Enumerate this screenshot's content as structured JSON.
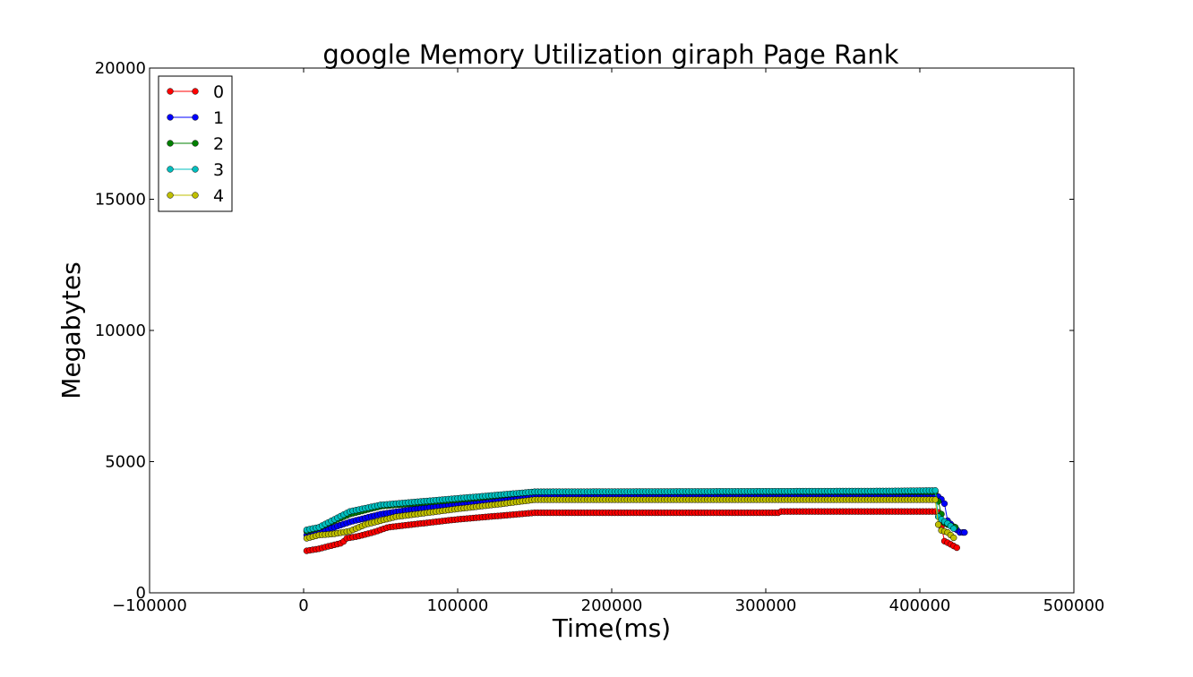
{
  "chart_data": {
    "type": "line",
    "title": "google Memory Utilization giraph Page Rank",
    "xlabel": "Time(ms)",
    "ylabel": "Megabytes",
    "xlim": [
      -100000,
      500000
    ],
    "ylim": [
      0,
      20000
    ],
    "xticks": [
      -100000,
      0,
      100000,
      200000,
      300000,
      400000,
      500000
    ],
    "xtick_labels": [
      "−100000",
      "0",
      "100000",
      "200000",
      "300000",
      "400000",
      "500000"
    ],
    "yticks": [
      0,
      5000,
      10000,
      15000,
      20000
    ],
    "ytick_labels": [
      "0",
      "5000",
      "10000",
      "15000",
      "20000"
    ],
    "grid": false,
    "legend_position": "top-left",
    "sample_interval_ms": 2000,
    "series": [
      {
        "name": "0",
        "color": "#ff0000",
        "keypoints": [
          [
            2000,
            1600
          ],
          [
            10000,
            1680
          ],
          [
            20000,
            1830
          ],
          [
            25000,
            1900
          ],
          [
            28000,
            2080
          ],
          [
            35000,
            2150
          ],
          [
            45000,
            2300
          ],
          [
            55000,
            2500
          ],
          [
            70000,
            2600
          ],
          [
            100000,
            2800
          ],
          [
            130000,
            2950
          ],
          [
            150000,
            3050
          ],
          [
            308000,
            3050
          ],
          [
            310000,
            3100
          ],
          [
            410000,
            3100
          ],
          [
            413000,
            3050
          ],
          [
            415000,
            2000
          ],
          [
            420000,
            1850
          ],
          [
            424000,
            1720
          ]
        ]
      },
      {
        "name": "1",
        "color": "#0000ff",
        "keypoints": [
          [
            2000,
            2200
          ],
          [
            10000,
            2350
          ],
          [
            20000,
            2500
          ],
          [
            30000,
            2700
          ],
          [
            50000,
            3000
          ],
          [
            80000,
            3250
          ],
          [
            100000,
            3400
          ],
          [
            130000,
            3600
          ],
          [
            150000,
            3700
          ],
          [
            410000,
            3700
          ],
          [
            413000,
            3650
          ],
          [
            416000,
            3400
          ],
          [
            418000,
            2750
          ],
          [
            422000,
            2500
          ],
          [
            426000,
            2300
          ],
          [
            429000,
            2300
          ]
        ]
      },
      {
        "name": "2",
        "color": "#008000",
        "keypoints": [
          [
            2000,
            2350
          ],
          [
            10000,
            2480
          ],
          [
            20000,
            2750
          ],
          [
            30000,
            3000
          ],
          [
            50000,
            3300
          ],
          [
            80000,
            3450
          ],
          [
            110000,
            3600
          ],
          [
            150000,
            3850
          ],
          [
            410000,
            3850
          ],
          [
            413000,
            3300
          ],
          [
            415000,
            2700
          ],
          [
            418000,
            2600
          ],
          [
            423000,
            2500
          ]
        ]
      },
      {
        "name": "3",
        "color": "#00bfbf",
        "keypoints": [
          [
            2000,
            2400
          ],
          [
            10000,
            2500
          ],
          [
            20000,
            2800
          ],
          [
            30000,
            3100
          ],
          [
            50000,
            3350
          ],
          [
            80000,
            3500
          ],
          [
            110000,
            3650
          ],
          [
            150000,
            3850
          ],
          [
            380000,
            3880
          ],
          [
            410000,
            3900
          ],
          [
            412000,
            2900
          ],
          [
            415000,
            2750
          ],
          [
            418000,
            2650
          ],
          [
            422000,
            2450
          ]
        ]
      },
      {
        "name": "4",
        "color": "#bfbf00",
        "keypoints": [
          [
            2000,
            2080
          ],
          [
            10000,
            2200
          ],
          [
            20000,
            2250
          ],
          [
            30000,
            2350
          ],
          [
            40000,
            2600
          ],
          [
            50000,
            2750
          ],
          [
            60000,
            2900
          ],
          [
            80000,
            3050
          ],
          [
            100000,
            3200
          ],
          [
            130000,
            3400
          ],
          [
            150000,
            3550
          ],
          [
            410000,
            3550
          ],
          [
            411000,
            2800
          ],
          [
            413000,
            2400
          ],
          [
            418000,
            2300
          ],
          [
            422000,
            2100
          ]
        ]
      }
    ]
  }
}
